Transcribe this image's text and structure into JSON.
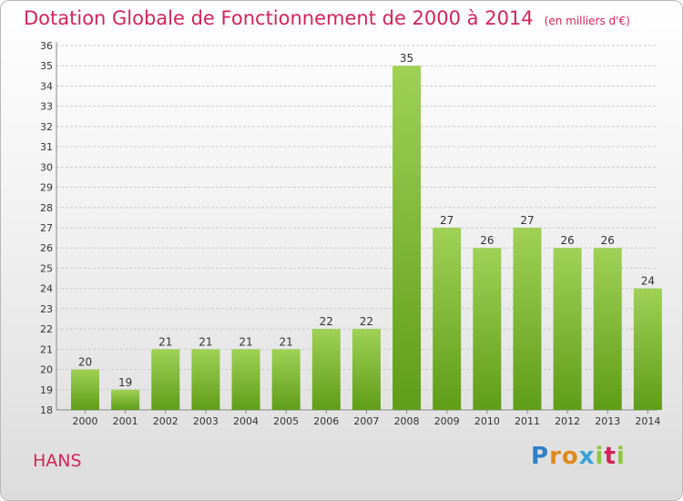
{
  "header": {
    "title": "Dotation Globale de Fonctionnement de 2000 à 2014",
    "unit": "(en milliers d'€)"
  },
  "footer": {
    "commune": "HANS",
    "logo": "Proxiti"
  },
  "colors": {
    "title": "#d3245a",
    "bar_top": "#9fd155",
    "bar_bottom": "#5f9d17",
    "grid": "#cccccc"
  },
  "chart_data": {
    "type": "bar",
    "title": "Dotation Globale de Fonctionnement de 2000 à 2014",
    "xlabel": "",
    "ylabel": "",
    "ylim": [
      18,
      36
    ],
    "yticks": [
      18,
      19,
      20,
      21,
      22,
      23,
      24,
      25,
      26,
      27,
      28,
      29,
      30,
      31,
      32,
      33,
      34,
      35,
      36
    ],
    "grid": true,
    "categories": [
      "2000",
      "2001",
      "2002",
      "2003",
      "2004",
      "2005",
      "2006",
      "2007",
      "2008",
      "2009",
      "2010",
      "2011",
      "2012",
      "2013",
      "2014"
    ],
    "values": [
      20,
      19,
      21,
      21,
      21,
      21,
      22,
      22,
      35,
      27,
      26,
      27,
      26,
      26,
      24
    ]
  }
}
